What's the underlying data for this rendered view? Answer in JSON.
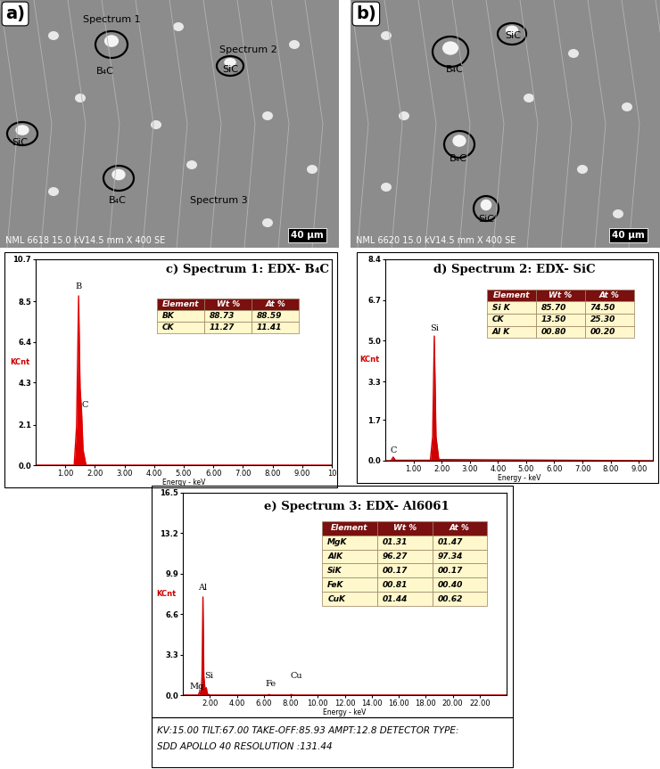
{
  "images": [
    {
      "panel": "a)",
      "labels": [
        "Spectrum 1",
        "B₄C",
        "Spectrum 2",
        "SiC",
        "SiC",
        "B₄C",
        "Spectrum 3"
      ],
      "scale_bar": "40 µm",
      "info": "NML 6618 15.0 kV14.5 mm X 400 SE"
    },
    {
      "panel": "b)",
      "labels": [
        "B₄C",
        "SiC",
        "B₄C",
        "SiC"
      ],
      "scale_bar": "40 µm",
      "info": "NML 6620 15.0 kV14.5 mm X 400 SE"
    }
  ],
  "chart_data": [
    {
      "type": "line",
      "title": "c) Spectrum 1: EDX- B₄C",
      "x_label": "Energy - keV",
      "y_label": "KCnt",
      "color": "#e00000",
      "x": [
        0.0,
        1.3,
        1.38,
        1.45,
        1.5,
        1.55,
        1.6,
        1.7,
        10.0
      ],
      "values": [
        0.0,
        0.0,
        2.0,
        8.8,
        4.0,
        2.8,
        0.8,
        0.0,
        0.0
      ],
      "xlim": [
        0,
        10
      ],
      "ylim": [
        0,
        10.7
      ],
      "xticks": [
        {
          "value": 1,
          "label": "1.00"
        },
        {
          "value": 2,
          "label": "2.00"
        },
        {
          "value": 3,
          "label": "3.00"
        },
        {
          "value": 4,
          "label": "4.00"
        },
        {
          "value": 5,
          "label": "5.00"
        },
        {
          "value": 6,
          "label": "6.00"
        },
        {
          "value": 7,
          "label": "7.00"
        },
        {
          "value": 8,
          "label": "8.00"
        },
        {
          "value": 9,
          "label": "9.00"
        },
        10
      ],
      "yticks": [
        0.0,
        2.1,
        4.3,
        6.4,
        8.5,
        10.7
      ],
      "annotations": [
        {
          "text": "B",
          "x": 1.45,
          "y": 9.1
        },
        {
          "text": "C",
          "x": 1.66,
          "y": 2.9
        }
      ],
      "table": {
        "columns": [
          "Element",
          "Wt %",
          "At %"
        ],
        "rows": [
          [
            "BK",
            "88.73",
            "88.59"
          ],
          [
            "CK",
            "11.27",
            "11.41"
          ]
        ]
      }
    },
    {
      "type": "line",
      "title": "d) Spectrum 2: EDX- SiC",
      "x_label": "Energy - keV",
      "y_label": "KCnt",
      "color": "#d00000",
      "x": [
        0.0,
        0.2,
        0.28,
        0.36,
        1.6,
        1.68,
        1.74,
        1.8,
        1.9,
        9.5
      ],
      "values": [
        0.0,
        0.0,
        0.15,
        0.02,
        0.02,
        1.0,
        5.2,
        1.0,
        0.05,
        0.0
      ],
      "xlim": [
        0,
        9.5
      ],
      "ylim": [
        0,
        8.4
      ],
      "xticks": [
        {
          "value": 1,
          "label": "1.00"
        },
        {
          "value": 2,
          "label": "2.00"
        },
        {
          "value": 3,
          "label": "3.00"
        },
        {
          "value": 4,
          "label": "4.00"
        },
        {
          "value": 5,
          "label": "5.00"
        },
        {
          "value": 6,
          "label": "6.00"
        },
        {
          "value": 7,
          "label": "7.00"
        },
        {
          "value": 8,
          "label": "8.00"
        },
        {
          "value": 9,
          "label": "9.00"
        }
      ],
      "yticks": [
        0.0,
        1.7,
        3.3,
        5.0,
        6.7,
        8.4
      ],
      "annotations": [
        {
          "text": "Si",
          "x": 1.74,
          "y": 5.35
        },
        {
          "text": "C",
          "x": 0.28,
          "y": 0.25
        }
      ],
      "table": {
        "columns": [
          "Element",
          "Wt %",
          "At %"
        ],
        "rows": [
          [
            "Si K",
            "85.70",
            "74.50"
          ],
          [
            "CK",
            "13.50",
            "25.30"
          ],
          [
            "Al K",
            "00.80",
            "00.20"
          ]
        ]
      }
    },
    {
      "type": "line",
      "title": "e) Spectrum 3: EDX- Al6061",
      "x_label": "Energy - keV",
      "y_label": "KCnt",
      "color": "#d00000",
      "x": [
        0.0,
        1.15,
        1.25,
        1.35,
        1.42,
        1.49,
        1.56,
        1.66,
        1.74,
        1.82,
        2.0,
        6.3,
        6.4,
        6.5,
        7.95,
        8.05,
        8.15,
        24.0
      ],
      "values": [
        0.0,
        0.0,
        0.3,
        0.2,
        1.5,
        8.0,
        1.5,
        0.3,
        0.6,
        0.1,
        0.0,
        0.0,
        0.05,
        0.0,
        0.0,
        0.05,
        0.0,
        0.0
      ],
      "xlim": [
        0,
        24
      ],
      "ylim": [
        0,
        16.5
      ],
      "xticks": [
        {
          "value": 2,
          "label": "2.00"
        },
        {
          "value": 4,
          "label": "4.00"
        },
        {
          "value": 6,
          "label": "6.00"
        },
        {
          "value": 8,
          "label": "8.00"
        },
        {
          "value": 10,
          "label": "10.00"
        },
        {
          "value": 12,
          "label": "12.00"
        },
        {
          "value": 14,
          "label": "14.00"
        },
        {
          "value": 16,
          "label": "16.00"
        },
        {
          "value": 18,
          "label": "18.00"
        },
        {
          "value": 20,
          "label": "20.00"
        },
        {
          "value": 22,
          "label": "22.00"
        }
      ],
      "yticks": [
        0.0,
        3.3,
        6.6,
        9.9,
        13.2,
        16.5
      ],
      "annotations": [
        {
          "text": "Al",
          "x": 1.49,
          "y": 8.4
        },
        {
          "text": "Si",
          "x": 1.95,
          "y": 1.2
        },
        {
          "text": "Mg",
          "x": 1.05,
          "y": 0.35
        },
        {
          "text": "Fe",
          "x": 6.5,
          "y": 0.6
        },
        {
          "text": "Cu",
          "x": 8.4,
          "y": 1.2
        }
      ],
      "table": {
        "columns": [
          "Element",
          "Wt %",
          "At %"
        ],
        "rows": [
          [
            "MgK",
            "01.31",
            "01.47"
          ],
          [
            "AlK",
            "96.27",
            "97.34"
          ],
          [
            "SiK",
            "00.17",
            "00.17"
          ],
          [
            "FeK",
            "00.81",
            "00.40"
          ],
          [
            "CuK",
            "01.44",
            "00.62"
          ]
        ]
      }
    }
  ],
  "footer": [
    "KV:15.00 TILT:67.00 TAKE-OFF:85.93 AMPT:12.8 DETECTOR TYPE:",
    "SDD APOLLO 40 RESOLUTION :131.44"
  ]
}
